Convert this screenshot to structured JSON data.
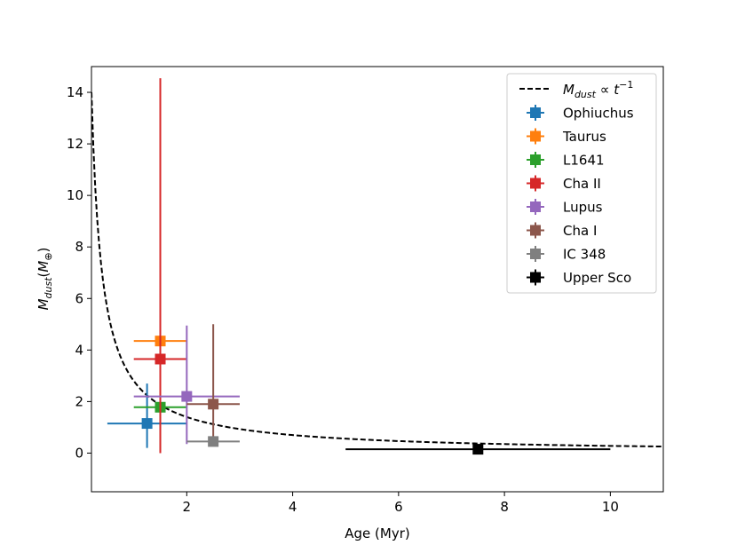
{
  "chart_data": {
    "type": "scatter",
    "title": "",
    "xlabel": "Age (Myr)",
    "ylabel": {
      "base": "M",
      "sub": "dust",
      "paren_open": "(",
      "inner": "M",
      "inner_sub": "⊕",
      "paren_close": ")"
    },
    "xlim": [
      0.2,
      11.0
    ],
    "ylim": [
      -1.5,
      15.0
    ],
    "xticks": [
      2,
      4,
      6,
      8,
      10
    ],
    "yticks": [
      0,
      2,
      4,
      6,
      8,
      10,
      12,
      14
    ],
    "grid": false,
    "legend_position": "top-right",
    "model_curve": {
      "label": {
        "base": "M",
        "sub": "dust",
        "prop": " ∝ ",
        "t": "t",
        "exp": "−1"
      },
      "type": "dashed",
      "color": "#000000",
      "coefficient": 2.8,
      "x_range": [
        0.2,
        11.0
      ]
    },
    "series": [
      {
        "name": "Ophiuchus",
        "color": "#1f77b4",
        "x": 1.25,
        "y": 1.15,
        "xerr": [
          0.75,
          0.75
        ],
        "yerr": [
          0.95,
          1.55
        ]
      },
      {
        "name": "Taurus",
        "color": "#ff7f0e",
        "x": 1.5,
        "y": 4.35,
        "xerr": [
          0.5,
          0.5
        ],
        "yerr": [
          0.0,
          0.0
        ]
      },
      {
        "name": "L1641",
        "color": "#2ca02c",
        "x": 1.5,
        "y": 1.78,
        "xerr": [
          0.5,
          0.5
        ],
        "yerr": [
          1.68,
          0.0
        ]
      },
      {
        "name": "Cha II",
        "color": "#d62728",
        "x": 1.5,
        "y": 3.65,
        "xerr": [
          0.5,
          0.5
        ],
        "yerr": [
          3.65,
          10.9
        ]
      },
      {
        "name": "Lupus",
        "color": "#9467bd",
        "x": 2.0,
        "y": 2.2,
        "xerr": [
          1.0,
          1.0
        ],
        "yerr": [
          1.85,
          2.75
        ]
      },
      {
        "name": "Cha I",
        "color": "#8c564b",
        "x": 2.5,
        "y": 1.9,
        "xerr": [
          0.5,
          0.5
        ],
        "yerr": [
          1.5,
          3.1
        ]
      },
      {
        "name": "IC 348",
        "color": "#7f7f7f",
        "x": 2.5,
        "y": 0.45,
        "xerr": [
          0.5,
          0.5
        ],
        "yerr": [
          0.0,
          0.0
        ]
      },
      {
        "name": "Upper Sco",
        "color": "#000000",
        "x": 7.5,
        "y": 0.15,
        "xerr": [
          2.5,
          2.5
        ],
        "yerr": [
          0.0,
          0.0
        ]
      }
    ]
  }
}
